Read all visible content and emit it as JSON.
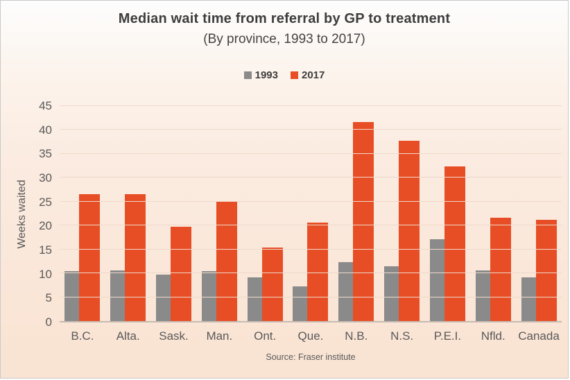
{
  "page": {
    "title": "Median wait time from referral by GP to treatment",
    "subtitle": "(By province, 1993 to 2017)",
    "source": "Source: Fraser institute"
  },
  "chart_data": {
    "type": "bar",
    "title": "Median wait time from referral by GP to treatment",
    "subtitle": "(By province, 1993 to 2017)",
    "categories": [
      "B.C.",
      "Alta.",
      "Sask.",
      "Man.",
      "Ont.",
      "Que.",
      "N.B.",
      "N.S.",
      "P.E.I.",
      "Nfld.",
      "Canada"
    ],
    "series": [
      {
        "name": "1993",
        "color": "#8a8a8a",
        "values": [
          10.4,
          10.6,
          9.8,
          10.4,
          9.1,
          7.3,
          12.3,
          11.5,
          17.1,
          10.6,
          9.2
        ]
      },
      {
        "name": "2017",
        "color": "#e84e25",
        "values": [
          26.6,
          26.5,
          19.8,
          25.0,
          15.4,
          20.6,
          41.7,
          37.8,
          32.4,
          21.6,
          21.2
        ]
      }
    ],
    "xlabel": "",
    "ylabel": "Weeks waited",
    "yticks": [
      0,
      5,
      10,
      15,
      20,
      25,
      30,
      35,
      40,
      45
    ],
    "ylim": [
      0,
      45
    ],
    "grid": true,
    "legend_position": "top",
    "source": "Source: Fraser institute"
  },
  "colors": {
    "background_top": "#fdfdfd",
    "background_bottom": "#f9e3d2",
    "bar_1993": "#8a8a8a",
    "bar_2017": "#e84e25",
    "gridline": "#eed9cb",
    "axis_line": "#c6bab0",
    "tick_text": "#595959",
    "title_text": "#3d3d3d",
    "frame_border": "#c9c9c9"
  }
}
